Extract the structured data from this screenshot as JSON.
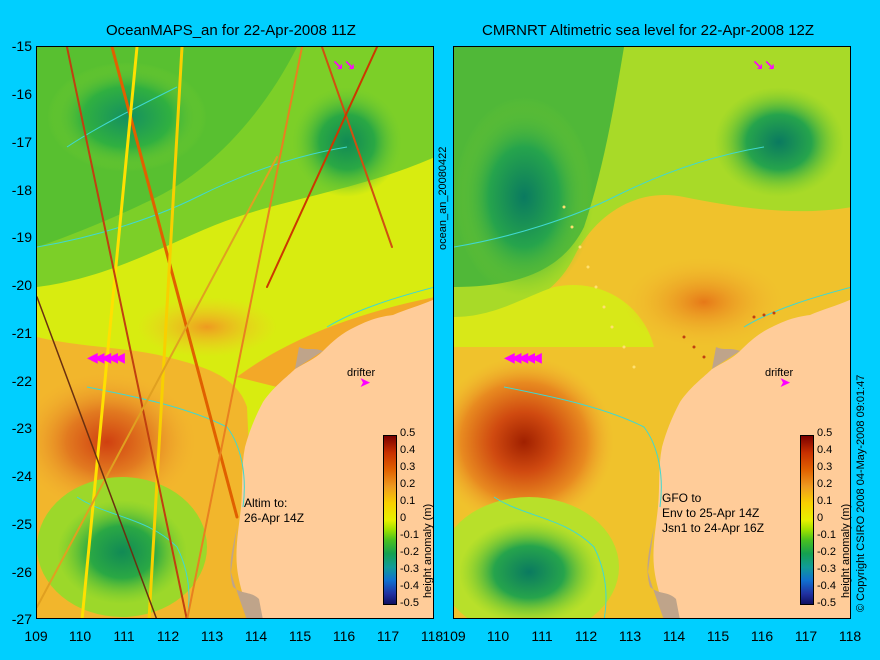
{
  "left_panel": {
    "title": "OceanMAPS_an for 22-Apr-2008 11Z",
    "annotation": "Altim to:\n26-Apr 14Z",
    "drifter_label": "drifter"
  },
  "right_panel": {
    "title": "CMRNRT Altimetric sea level  for 22-Apr-2008 12Z",
    "annotation": "GFO to\nEnv to 25-Apr 14Z\nJsn1 to 24-Apr 16Z",
    "drifter_label": "drifter"
  },
  "side_labels": {
    "ocean_tag": "ocean_an_20080422",
    "copyright": "© Copyright CSIRO 2008  04-May-2008 09:01:47"
  },
  "axes": {
    "y_ticks": [
      "-15",
      "-16",
      "-17",
      "-18",
      "-19",
      "-20",
      "-21",
      "-22",
      "-23",
      "-24",
      "-25",
      "-26",
      "-27"
    ],
    "x_ticks_left": [
      "109",
      "110",
      "111",
      "112",
      "113",
      "114",
      "115",
      "116",
      "117",
      "118"
    ],
    "x_ticks_right": [
      "109",
      "110",
      "111",
      "112",
      "113",
      "114",
      "115",
      "116",
      "117",
      "118"
    ]
  },
  "colorbar": {
    "label": "height anomaly (m)",
    "ticks": [
      "0.5",
      "0.4",
      "0.3",
      "0.2",
      "0.1",
      "0",
      "-0.1",
      "-0.2",
      "-0.3",
      "-0.4",
      "-0.5"
    ]
  },
  "colors": {
    "background": "#00cfff",
    "land": "#ffcc99",
    "coastline_shelf": "#bfa48a",
    "drifter_arrow": "#ff00ff"
  }
}
